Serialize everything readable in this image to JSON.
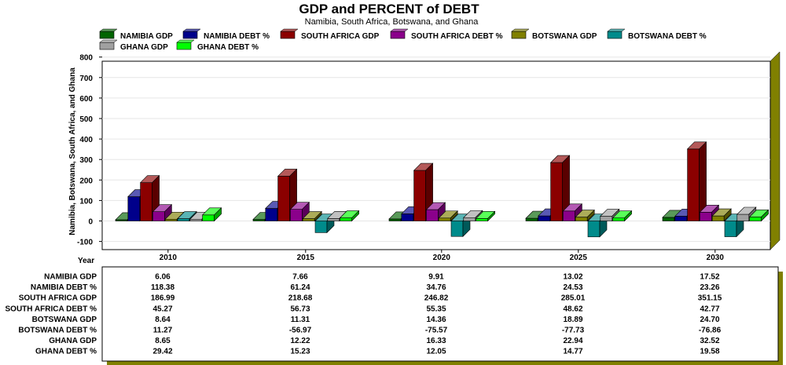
{
  "chart_data": {
    "type": "bar",
    "title": "GDP and PERCENT of DEBT",
    "subtitle": "Namibia, South Africa, Botswana, and Ghana",
    "ylabel": "Namibia, Botswana, South Africa, and Ghana",
    "xlabel": "Year",
    "categories": [
      "2010",
      "2015",
      "2020",
      "2025",
      "2030"
    ],
    "ylim": [
      -100,
      800
    ],
    "yticks": [
      -100,
      0,
      100,
      200,
      300,
      400,
      500,
      600,
      700,
      800
    ],
    "grid": true,
    "legend_position": "top",
    "series": [
      {
        "name": "NAMIBIA GDP",
        "color": "#006400",
        "values": [
          6.06,
          7.66,
          9.91,
          13.02,
          17.52
        ],
        "labels": [
          "6.06",
          "7.66",
          "9.91",
          "13.02",
          "17.52"
        ]
      },
      {
        "name": "NAMIBIA DEBT %",
        "color": "#00008b",
        "values": [
          118.38,
          61.24,
          34.76,
          24.53,
          23.26
        ],
        "labels": [
          "118.38",
          "61.24",
          "34.76",
          "24.53",
          "23.26"
        ]
      },
      {
        "name": "SOUTH AFRICA GDP",
        "color": "#8b0000",
        "values": [
          186.99,
          218.68,
          246.82,
          285.01,
          351.15
        ],
        "labels": [
          "186.99",
          "218.68",
          "246.82",
          "285.01",
          "351.15"
        ]
      },
      {
        "name": "SOUTH AFRICA DEBT %",
        "color": "#8b008b",
        "values": [
          45.27,
          56.73,
          55.35,
          48.62,
          42.77
        ],
        "labels": [
          "45.27",
          "56.73",
          "55.35",
          "48.62",
          "42.77"
        ]
      },
      {
        "name": "BOTSWANA GDP",
        "color": "#808000",
        "values": [
          8.64,
          11.31,
          14.36,
          18.89,
          24.7
        ],
        "labels": [
          "8.64",
          "11.31",
          "14.36",
          "18.89",
          "24.70"
        ]
      },
      {
        "name": "BOTSWANA DEBT %",
        "color": "#008b8b",
        "values": [
          11.27,
          -56.97,
          -75.57,
          -77.73,
          -76.86
        ],
        "labels": [
          "11.27",
          "-56.97",
          "-75.57",
          "-77.73",
          "-76.86"
        ]
      },
      {
        "name": "GHANA GDP",
        "color": "#a0a0a0",
        "values": [
          8.65,
          12.22,
          16.33,
          22.94,
          32.52
        ],
        "labels": [
          "8.65",
          "12.22",
          "16.33",
          "22.94",
          "32.52"
        ]
      },
      {
        "name": "GHANA DEBT %",
        "color": "#00ff00",
        "values": [
          29.42,
          15.23,
          12.05,
          14.77,
          19.58
        ],
        "labels": [
          "29.42",
          "15.23",
          "12.05",
          "14.77",
          "19.58"
        ]
      }
    ]
  }
}
